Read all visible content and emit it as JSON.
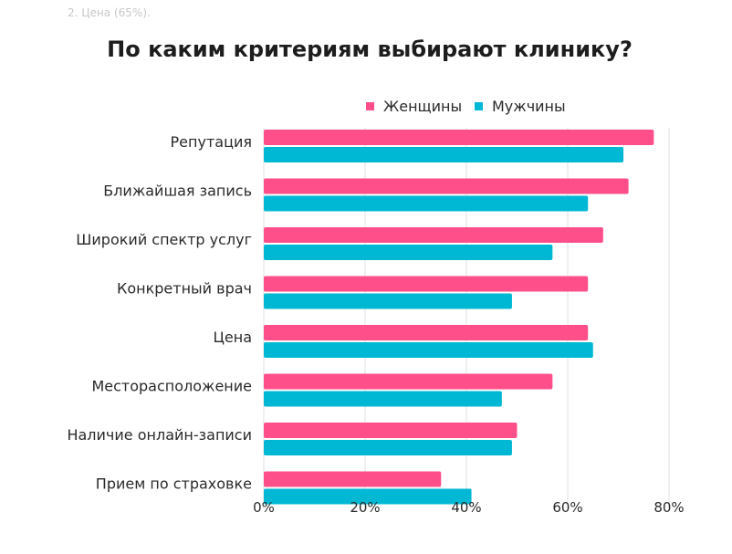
{
  "top_fragment": "2. Цена (65%).",
  "chart_data": {
    "type": "bar",
    "orientation": "horizontal",
    "title": "По каким критериям выбирают клинику?",
    "categories": [
      "Репутация",
      "Ближайшая запись",
      "Широкий спектр услуг",
      "Конкретный врач",
      "Цена",
      "Месторасположение",
      "Наличие онлайн-записи",
      "Прием по страховке"
    ],
    "series": [
      {
        "name": "Женщины",
        "color": "#ff4f8b",
        "values": [
          77,
          72,
          67,
          64,
          64,
          57,
          50,
          35
        ]
      },
      {
        "name": "Мужчины",
        "color": "#00b8d4",
        "values": [
          71,
          64,
          57,
          49,
          65,
          47,
          49,
          41
        ]
      }
    ],
    "xlim": [
      0,
      80
    ],
    "xticks": [
      0,
      20,
      40,
      60,
      80
    ],
    "xtick_labels": [
      "0%",
      "20%",
      "40%",
      "60%",
      "80%"
    ],
    "grid": true,
    "legend_position": "top-right"
  }
}
